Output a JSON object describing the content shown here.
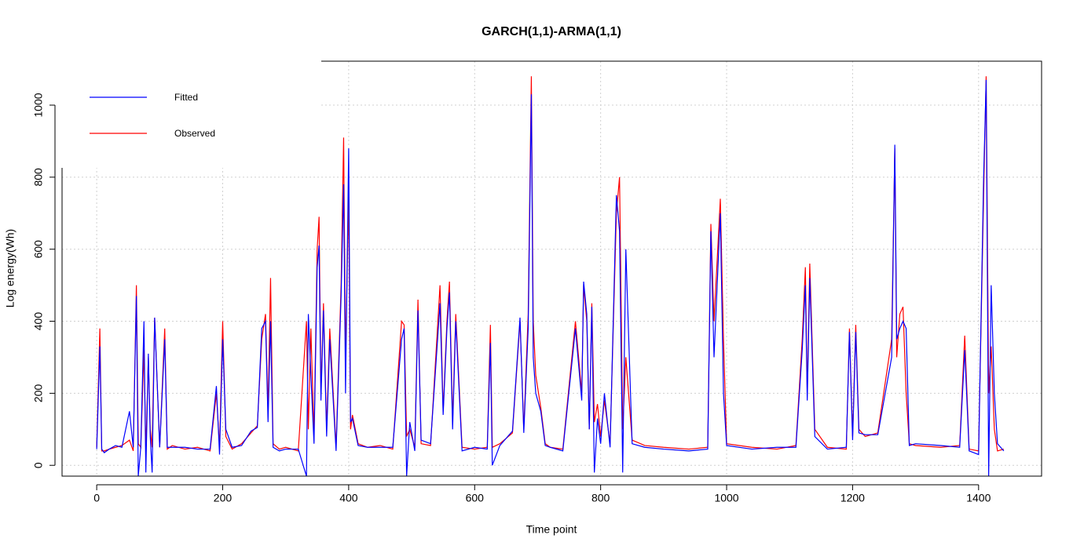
{
  "chart_data": {
    "type": "line",
    "title": "GARCH(1,1)-ARMA(1,1)",
    "x_label": "Time point",
    "y_label": "Log energy(Wh)",
    "xlim": [
      -55,
      1500
    ],
    "ylim": [
      -30,
      1122
    ],
    "xticks": [
      0,
      200,
      400,
      600,
      800,
      1000,
      1200,
      1400
    ],
    "yticks": [
      0,
      200,
      400,
      600,
      800,
      1000
    ],
    "grid": true,
    "legend": "top-left",
    "x": [
      0,
      5,
      8,
      12,
      20,
      30,
      40,
      52,
      58,
      63,
      66,
      70,
      75,
      78,
      82,
      85,
      88,
      92,
      100,
      108,
      112,
      120,
      140,
      160,
      180,
      190,
      195,
      200,
      205,
      215,
      230,
      245,
      255,
      262,
      268,
      272,
      276,
      280,
      290,
      300,
      320,
      333,
      336,
      340,
      345,
      350,
      353,
      356,
      360,
      365,
      370,
      380,
      388,
      392,
      395,
      400,
      403,
      406,
      415,
      430,
      450,
      470,
      484,
      488,
      492,
      497,
      505,
      510,
      515,
      530,
      545,
      550,
      556,
      560,
      565,
      570,
      580,
      600,
      620,
      625,
      628,
      640,
      660,
      672,
      678,
      685,
      690,
      693,
      697,
      705,
      712,
      720,
      740,
      760,
      770,
      773,
      778,
      782,
      786,
      790,
      795,
      800,
      806,
      815,
      825,
      830,
      835,
      840,
      850,
      870,
      900,
      940,
      970,
      975,
      980,
      990,
      995,
      1000,
      1040,
      1080,
      1110,
      1120,
      1125,
      1128,
      1132,
      1140,
      1160,
      1190,
      1195,
      1200,
      1205,
      1210,
      1220,
      1240,
      1262,
      1267,
      1270,
      1275,
      1280,
      1285,
      1290,
      1300,
      1340,
      1370,
      1378,
      1385,
      1400,
      1408,
      1412,
      1416,
      1420,
      1425,
      1430,
      1440
    ],
    "series": [
      {
        "name": "Observed",
        "color": "#ff0000",
        "values": [
          50,
          380,
          40,
          40,
          45,
          50,
          55,
          70,
          40,
          500,
          60,
          50,
          320,
          40,
          300,
          100,
          50,
          410,
          50,
          380,
          45,
          55,
          45,
          50,
          40,
          200,
          50,
          400,
          80,
          45,
          60,
          90,
          110,
          350,
          420,
          150,
          520,
          60,
          45,
          50,
          40,
          400,
          100,
          380,
          80,
          600,
          690,
          200,
          450,
          100,
          380,
          50,
          500,
          910,
          300,
          750,
          100,
          140,
          60,
          50,
          55,
          45,
          400,
          390,
          80,
          100,
          50,
          460,
          60,
          55,
          500,
          150,
          400,
          510,
          120,
          420,
          50,
          45,
          50,
          390,
          50,
          60,
          90,
          400,
          100,
          420,
          1080,
          400,
          250,
          160,
          60,
          50,
          45,
          400,
          200,
          500,
          400,
          100,
          450,
          120,
          170,
          80,
          180,
          60,
          700,
          800,
          100,
          300,
          70,
          55,
          50,
          45,
          50,
          670,
          400,
          740,
          350,
          60,
          50,
          45,
          55,
          350,
          550,
          200,
          560,
          100,
          50,
          45,
          380,
          80,
          390,
          100,
          80,
          90,
          350,
          880,
          300,
          420,
          440,
          200,
          60,
          55,
          50,
          55,
          360,
          45,
          40,
          750,
          1080,
          200,
          330,
          100,
          40,
          45
        ]
      },
      {
        "name": "Fitted",
        "color": "#0000ff",
        "values": [
          45,
          330,
          45,
          35,
          45,
          55,
          50,
          150,
          50,
          470,
          -30,
          50,
          400,
          -20,
          310,
          80,
          -20,
          410,
          50,
          350,
          50,
          50,
          50,
          45,
          45,
          220,
          30,
          350,
          100,
          50,
          55,
          95,
          105,
          380,
          400,
          120,
          400,
          50,
          40,
          45,
          45,
          -30,
          420,
          250,
          60,
          550,
          610,
          180,
          430,
          80,
          350,
          40,
          470,
          780,
          200,
          880,
          120,
          130,
          55,
          50,
          50,
          50,
          350,
          380,
          -30,
          120,
          40,
          430,
          70,
          60,
          450,
          140,
          380,
          480,
          100,
          400,
          40,
          50,
          45,
          340,
          0,
          55,
          95,
          410,
          90,
          380,
          1030,
          300,
          200,
          150,
          55,
          50,
          40,
          380,
          180,
          510,
          420,
          100,
          440,
          -20,
          130,
          60,
          200,
          50,
          750,
          650,
          -20,
          600,
          60,
          50,
          45,
          40,
          45,
          650,
          300,
          700,
          200,
          55,
          45,
          50,
          50,
          320,
          500,
          180,
          520,
          80,
          45,
          50,
          370,
          70,
          370,
          90,
          85,
          85,
          300,
          890,
          350,
          380,
          400,
          380,
          55,
          60,
          55,
          50,
          320,
          40,
          30,
          800,
          1070,
          -30,
          500,
          200,
          60,
          40
        ]
      }
    ]
  }
}
